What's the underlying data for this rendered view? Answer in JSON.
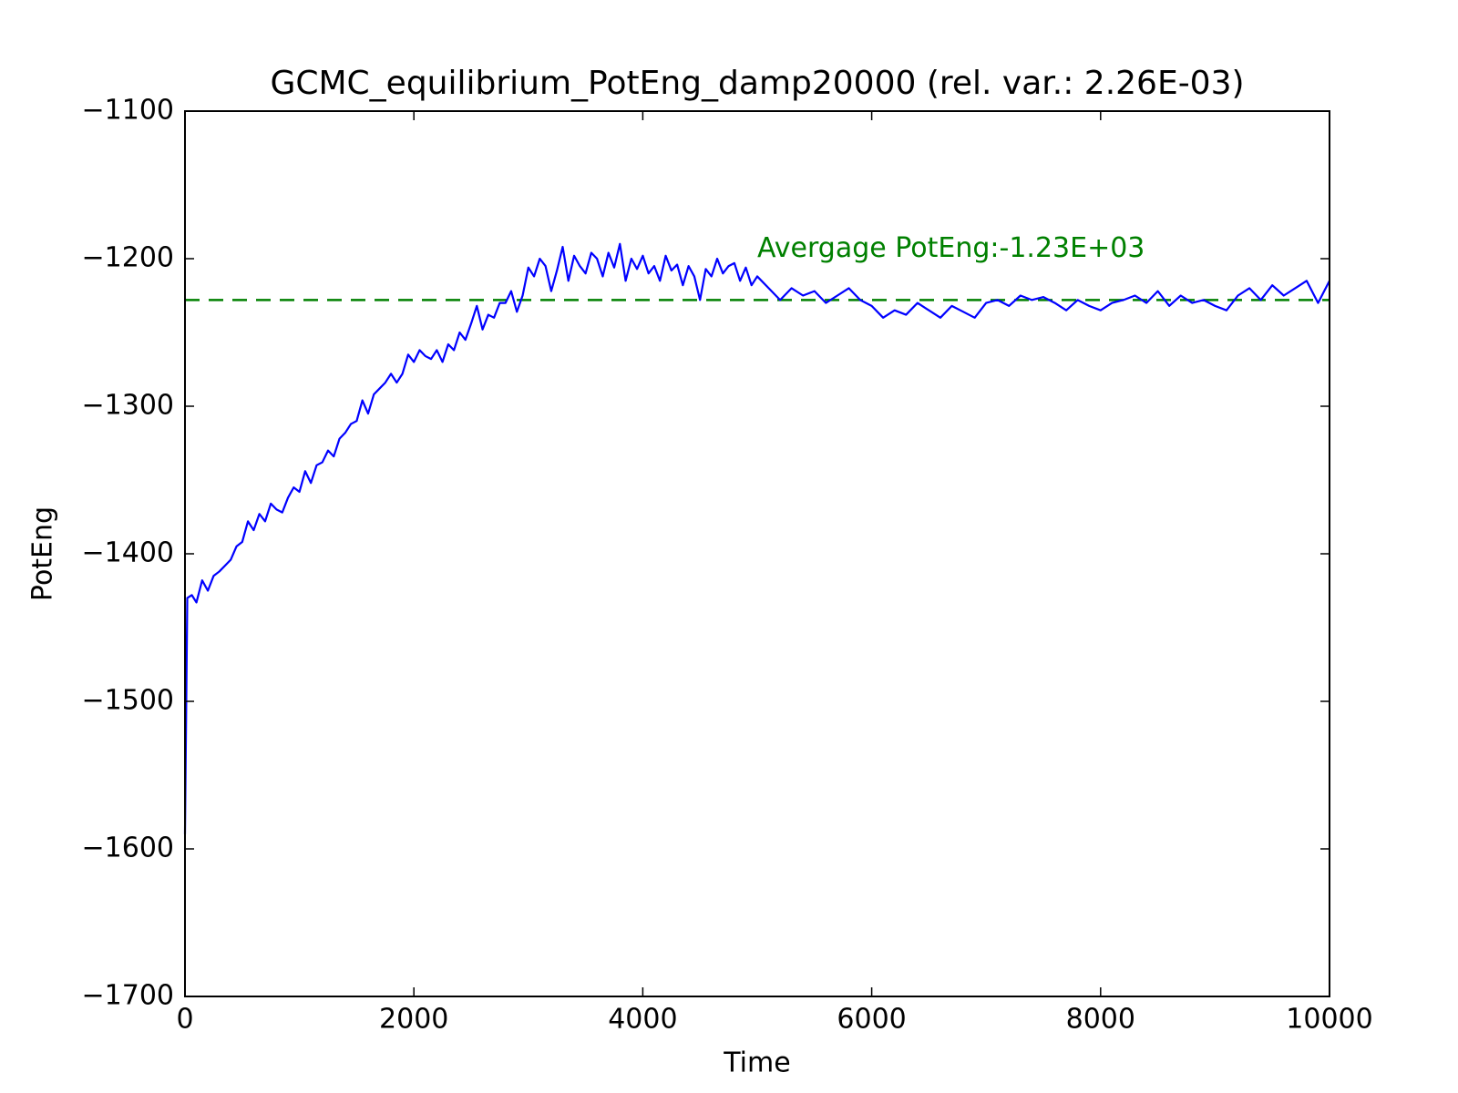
{
  "chart_data": {
    "type": "line",
    "title": "GCMC_equilibrium_PotEng_damp20000 (rel. var.: 2.26E-03)",
    "x_label": "Time",
    "y_label": "PotEng",
    "xlim": [
      0,
      10000
    ],
    "xticks": [
      0,
      2000,
      4000,
      6000,
      8000,
      10000
    ],
    "ylim": [
      -1700,
      -1100
    ],
    "yticks": [
      {
        "value": -1700,
        "label": "−1700"
      },
      {
        "value": -1600,
        "label": "−1600"
      },
      {
        "value": -1500,
        "label": "−1500"
      },
      {
        "value": -1400,
        "label": "−1400"
      },
      {
        "value": -1300,
        "label": "−1300"
      },
      {
        "value": -1200,
        "label": "−1200"
      },
      {
        "value": -1100,
        "label": "−1100"
      }
    ],
    "x": [
      0,
      20,
      60,
      100,
      150,
      200,
      250,
      300,
      350,
      400,
      450,
      500,
      550,
      600,
      650,
      700,
      750,
      800,
      850,
      900,
      950,
      1000,
      1050,
      1100,
      1150,
      1200,
      1250,
      1300,
      1350,
      1400,
      1450,
      1500,
      1550,
      1600,
      1650,
      1700,
      1750,
      1800,
      1850,
      1900,
      1950,
      2000,
      2050,
      2100,
      2150,
      2200,
      2250,
      2300,
      2350,
      2400,
      2450,
      2500,
      2550,
      2600,
      2650,
      2700,
      2750,
      2800,
      2850,
      2900,
      2950,
      3000,
      3050,
      3100,
      3150,
      3200,
      3250,
      3300,
      3350,
      3400,
      3450,
      3500,
      3550,
      3600,
      3650,
      3700,
      3750,
      3800,
      3850,
      3900,
      3950,
      4000,
      4050,
      4100,
      4150,
      4200,
      4250,
      4300,
      4350,
      4400,
      4450,
      4500,
      4550,
      4600,
      4650,
      4700,
      4750,
      4800,
      4850,
      4900,
      4950,
      5000,
      5100,
      5200,
      5300,
      5400,
      5500,
      5600,
      5700,
      5800,
      5900,
      6000,
      6100,
      6200,
      6300,
      6400,
      6500,
      6600,
      6700,
      6800,
      6900,
      7000,
      7100,
      7200,
      7300,
      7400,
      7500,
      7600,
      7700,
      7800,
      7900,
      8000,
      8100,
      8200,
      8300,
      8400,
      8500,
      8600,
      8700,
      8800,
      8900,
      9000,
      9100,
      9200,
      9300,
      9400,
      9500,
      9600,
      9700,
      9800,
      9900,
      10000
    ],
    "series": [
      {
        "name": "PotEng",
        "color": "#0000ff",
        "values": [
          -1590,
          -1430,
          -1428,
          -1433,
          -1418,
          -1425,
          -1415,
          -1412,
          -1408,
          -1404,
          -1395,
          -1392,
          -1378,
          -1384,
          -1373,
          -1378,
          -1366,
          -1370,
          -1372,
          -1362,
          -1355,
          -1358,
          -1344,
          -1352,
          -1340,
          -1338,
          -1330,
          -1334,
          -1322,
          -1318,
          -1312,
          -1310,
          -1296,
          -1305,
          -1292,
          -1288,
          -1284,
          -1278,
          -1284,
          -1278,
          -1265,
          -1270,
          -1262,
          -1266,
          -1268,
          -1262,
          -1270,
          -1258,
          -1262,
          -1250,
          -1255,
          -1244,
          -1232,
          -1248,
          -1238,
          -1240,
          -1230,
          -1230,
          -1222,
          -1236,
          -1225,
          -1206,
          -1212,
          -1200,
          -1205,
          -1222,
          -1208,
          -1192,
          -1215,
          -1198,
          -1205,
          -1210,
          -1196,
          -1200,
          -1212,
          -1196,
          -1206,
          -1190,
          -1215,
          -1200,
          -1207,
          -1198,
          -1210,
          -1205,
          -1215,
          -1198,
          -1208,
          -1204,
          -1218,
          -1205,
          -1212,
          -1228,
          -1207,
          -1212,
          -1200,
          -1210,
          -1205,
          -1203,
          -1215,
          -1206,
          -1218,
          -1212,
          -1220,
          -1228,
          -1220,
          -1225,
          -1222,
          -1230,
          -1225,
          -1220,
          -1228,
          -1232,
          -1240,
          -1235,
          -1238,
          -1230,
          -1235,
          -1240,
          -1232,
          -1236,
          -1240,
          -1230,
          -1228,
          -1232,
          -1225,
          -1228,
          -1226,
          -1230,
          -1235,
          -1228,
          -1232,
          -1235,
          -1230,
          -1228,
          -1225,
          -1230,
          -1222,
          -1232,
          -1225,
          -1230,
          -1228,
          -1232,
          -1235,
          -1225,
          -1220,
          -1228,
          -1218,
          -1225,
          -1220,
          -1215,
          -1230,
          -1215
        ]
      }
    ],
    "average_line": {
      "value": -1228,
      "color": "#008000",
      "label": "Avergage PotEng:-1.23E+03"
    }
  }
}
